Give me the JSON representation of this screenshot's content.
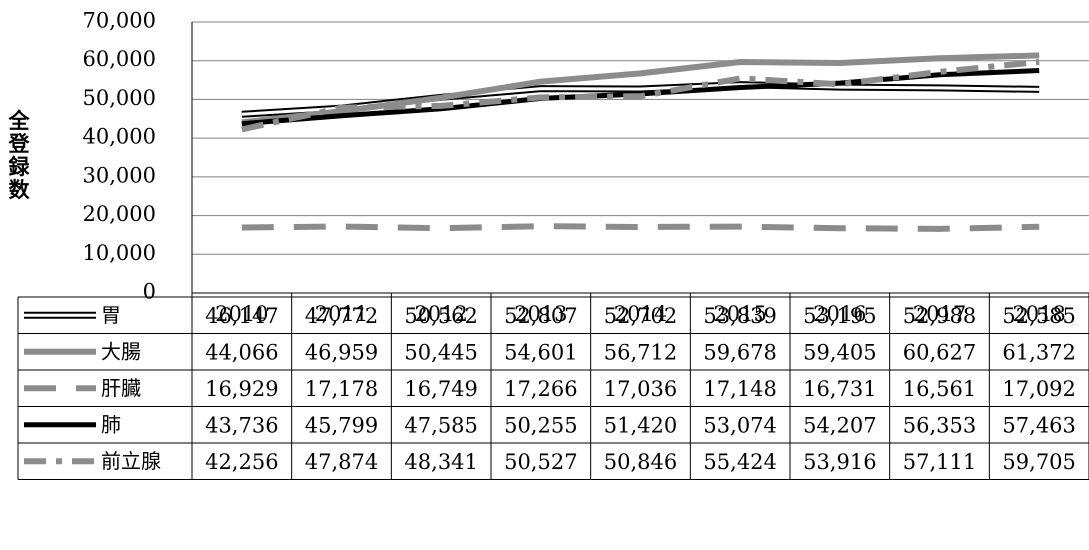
{
  "chart_data": {
    "type": "line",
    "ylabel": "全登録数",
    "xlabel": "",
    "title": "",
    "ylim": [
      0,
      70000
    ],
    "yticks": [
      "0",
      "10,000",
      "20,000",
      "30,000",
      "40,000",
      "50,000",
      "60,000",
      "70,000"
    ],
    "categories": [
      "2010",
      "2011",
      "2012",
      "2013",
      "2014",
      "2015",
      "2016",
      "2017",
      "2018"
    ],
    "grid": "horizontal",
    "legend": "data-table-below",
    "series": [
      {
        "name": "胃",
        "style": "double",
        "color": "#000000",
        "values": [
          46147,
          47772,
          50562,
          52807,
          52702,
          53839,
          53195,
          52988,
          52585
        ],
        "labels": [
          "46,147",
          "47,772",
          "50,562",
          "52,807",
          "52,702",
          "53,839",
          "53,195",
          "52,988",
          "52,585"
        ]
      },
      {
        "name": "大腸",
        "style": "solid",
        "color": "#8c8c8c",
        "values": [
          44066,
          46959,
          50445,
          54601,
          56712,
          59678,
          59405,
          60627,
          61372
        ],
        "labels": [
          "44,066",
          "46,959",
          "50,445",
          "54,601",
          "56,712",
          "59,678",
          "59,405",
          "60,627",
          "61,372"
        ]
      },
      {
        "name": "肝臓",
        "style": "longdash",
        "color": "#8c8c8c",
        "values": [
          16929,
          17178,
          16749,
          17266,
          17036,
          17148,
          16731,
          16561,
          17092
        ],
        "labels": [
          "16,929",
          "17,178",
          "16,749",
          "17,266",
          "17,036",
          "17,148",
          "16,731",
          "16,561",
          "17,092"
        ]
      },
      {
        "name": "肺",
        "style": "solid",
        "color": "#000000",
        "values": [
          43736,
          45799,
          47585,
          50255,
          51420,
          53074,
          54207,
          56353,
          57463
        ],
        "labels": [
          "43,736",
          "45,799",
          "47,585",
          "50,255",
          "51,420",
          "53,074",
          "54,207",
          "56,353",
          "57,463"
        ]
      },
      {
        "name": "前立腺",
        "style": "dashdot",
        "color": "#8c8c8c",
        "values": [
          42256,
          47874,
          48341,
          50527,
          50846,
          55424,
          53916,
          57111,
          59705
        ],
        "labels": [
          "42,256",
          "47,874",
          "48,341",
          "50,527",
          "50,846",
          "55,424",
          "53,916",
          "57,111",
          "59,705"
        ]
      }
    ]
  }
}
